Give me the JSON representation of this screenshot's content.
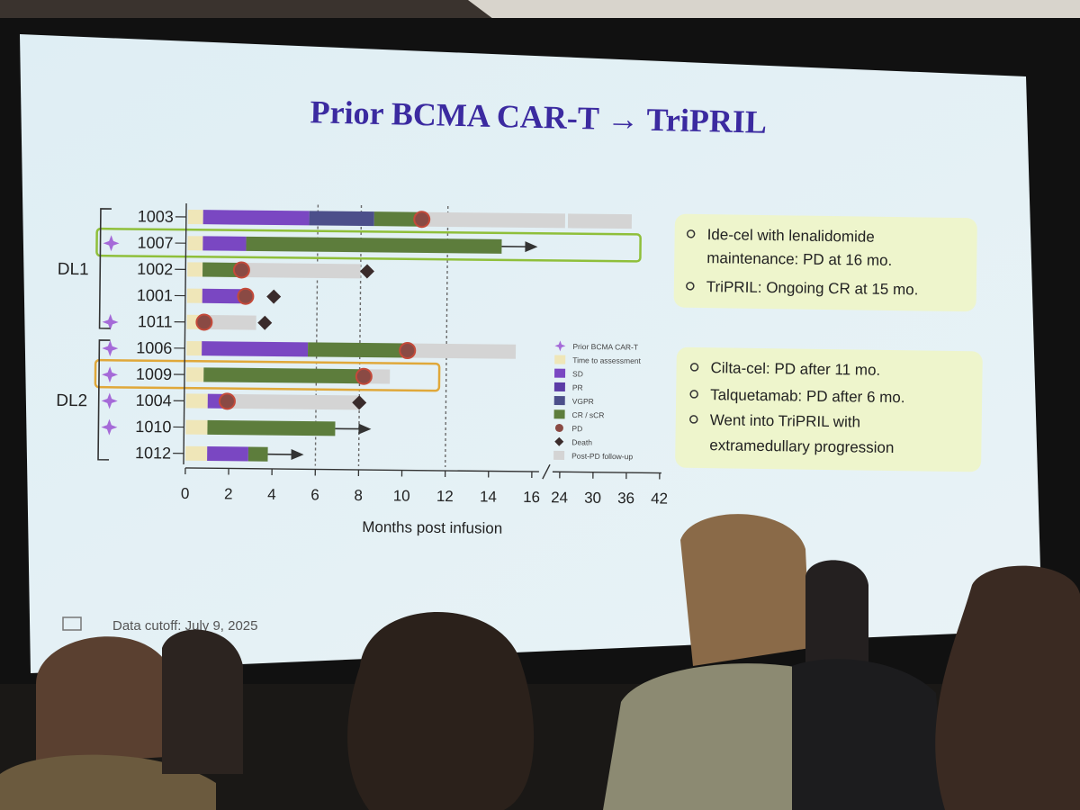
{
  "slide": {
    "title": "Prior BCMA CAR-T → TriPRIL",
    "footer": "Data cutoff: July 9, 2025"
  },
  "colors": {
    "screening": "#efe6b8",
    "sd": "#7a47c2",
    "pr": "#5b3ba6",
    "vgpr": "#4c4f8a",
    "cr": "#5d7d3c",
    "pd": "#8a4a44",
    "death": "#3a2b2b",
    "followup": "#d4d4d4",
    "prior": "#a56ad8",
    "title": "#3b2aa0",
    "dl1_box": "#8fbf3a",
    "dl2_box": "#e0a83a",
    "note_bg": "#eef5cc"
  },
  "notes": {
    "dl1": [
      {
        "line1": "Ide-cel with lenalidomide",
        "line2": "maintenance: PD at 16 mo."
      },
      {
        "line1": "TriPRIL: Ongoing CR at 15 mo.",
        "line2": ""
      }
    ],
    "dl2": [
      {
        "line1": "Cilta-cel: PD after 11 mo.",
        "line2": ""
      },
      {
        "line1": "Talquetamab: PD after 6 mo.",
        "line2": ""
      },
      {
        "line1": "Went into TriPRIL with",
        "line2": "extramedullary progression"
      }
    ]
  },
  "chart_data": {
    "type": "swimmer",
    "xlabel": "Months post infusion",
    "x_ticks": [
      "0",
      "2",
      "4",
      "6",
      "8",
      "10",
      "12",
      "14",
      "16",
      "24",
      "30",
      "36",
      "42"
    ],
    "x_scale": "piecewise linear: 0–16 then broken axis 24–42",
    "reference_lines_x": [
      6,
      8,
      12
    ],
    "groups": [
      {
        "label": "DL1",
        "patients": [
          "1003",
          "1007",
          "1002",
          "1001",
          "1011"
        ]
      },
      {
        "label": "DL2",
        "patients": [
          "1006",
          "1009",
          "1004",
          "1010",
          "1012"
        ]
      }
    ],
    "highlighted_patients": [
      {
        "id": "1007",
        "box": "dl1"
      },
      {
        "id": "1009",
        "box": "dl2"
      }
    ],
    "legend": [
      {
        "key": "prior",
        "label": "Prior BCMA CAR-T",
        "mark": "star"
      },
      {
        "key": "screening",
        "label": "Time to assessment",
        "mark": "rect"
      },
      {
        "key": "sd",
        "label": "SD",
        "mark": "rect"
      },
      {
        "key": "pr",
        "label": "PR",
        "mark": "rect"
      },
      {
        "key": "vgpr",
        "label": "VGPR",
        "mark": "rect"
      },
      {
        "key": "cr",
        "label": "CR / sCR",
        "mark": "rect"
      },
      {
        "key": "pd",
        "label": "PD",
        "mark": "circle"
      },
      {
        "key": "death",
        "label": "Death",
        "mark": "diamond"
      },
      {
        "key": "followup",
        "label": "Post-PD follow-up",
        "mark": "rect"
      }
    ],
    "patients": [
      {
        "id": "1003",
        "prior": false,
        "segments": [
          {
            "s": 0,
            "e": 0.7,
            "r": "screening"
          },
          {
            "s": 0.7,
            "e": 5.6,
            "r": "sd"
          },
          {
            "s": 5.6,
            "e": 8.6,
            "r": "vgpr"
          },
          {
            "s": 8.6,
            "e": 10.8,
            "r": "cr"
          },
          {
            "s": 10.8,
            "e": 24.5,
            "r": "followup"
          },
          {
            "s": 25,
            "e": 36.5,
            "r": "followup"
          }
        ],
        "pd": 10.8,
        "death": null,
        "ongoing": false
      },
      {
        "id": "1007",
        "prior": true,
        "segments": [
          {
            "s": 0,
            "e": 0.7,
            "r": "screening"
          },
          {
            "s": 0.7,
            "e": 2.7,
            "r": "sd"
          },
          {
            "s": 2.7,
            "e": 14.5,
            "r": "cr"
          }
        ],
        "pd": null,
        "death": null,
        "ongoing": true
      },
      {
        "id": "1002",
        "prior": false,
        "segments": [
          {
            "s": 0,
            "e": 0.7,
            "r": "screening"
          },
          {
            "s": 0.7,
            "e": 2.5,
            "r": "cr"
          },
          {
            "s": 2.5,
            "e": 8.0,
            "r": "followup"
          }
        ],
        "pd": 2.5,
        "death": 8.3,
        "ongoing": false
      },
      {
        "id": "1001",
        "prior": false,
        "segments": [
          {
            "s": 0,
            "e": 0.7,
            "r": "screening"
          },
          {
            "s": 0.7,
            "e": 2.7,
            "r": "sd"
          }
        ],
        "pd": 2.7,
        "death": 4.0,
        "ongoing": false
      },
      {
        "id": "1011",
        "prior": true,
        "segments": [
          {
            "s": 0,
            "e": 0.8,
            "r": "screening"
          },
          {
            "s": 0.8,
            "e": 3.2,
            "r": "followup"
          }
        ],
        "pd": 0.8,
        "death": 3.6,
        "ongoing": false
      },
      {
        "id": "1006",
        "prior": true,
        "segments": [
          {
            "s": 0,
            "e": 0.7,
            "r": "screening"
          },
          {
            "s": 0.7,
            "e": 5.6,
            "r": "sd"
          },
          {
            "s": 5.6,
            "e": 10.2,
            "r": "cr"
          },
          {
            "s": 10.2,
            "e": 15.2,
            "r": "followup"
          }
        ],
        "pd": 10.2,
        "death": null,
        "ongoing": false
      },
      {
        "id": "1009",
        "prior": true,
        "segments": [
          {
            "s": 0,
            "e": 0.8,
            "r": "screening"
          },
          {
            "s": 0.8,
            "e": 8.2,
            "r": "cr"
          },
          {
            "s": 8.2,
            "e": 9.4,
            "r": "followup"
          }
        ],
        "pd": 8.2,
        "death": null,
        "ongoing": false
      },
      {
        "id": "1004",
        "prior": true,
        "segments": [
          {
            "s": 0,
            "e": 1.0,
            "r": "screening"
          },
          {
            "s": 1.0,
            "e": 1.9,
            "r": "sd"
          },
          {
            "s": 1.9,
            "e": 8.0,
            "r": "followup"
          }
        ],
        "pd": 1.9,
        "death": 8.0,
        "ongoing": false
      },
      {
        "id": "1010",
        "prior": true,
        "segments": [
          {
            "s": 0,
            "e": 1.0,
            "r": "screening"
          },
          {
            "s": 1.0,
            "e": 6.9,
            "r": "cr"
          }
        ],
        "pd": null,
        "death": null,
        "ongoing": true
      },
      {
        "id": "1012",
        "prior": false,
        "segments": [
          {
            "s": 0,
            "e": 1.0,
            "r": "screening"
          },
          {
            "s": 1.0,
            "e": 2.9,
            "r": "sd"
          },
          {
            "s": 2.9,
            "e": 3.8,
            "r": "cr"
          }
        ],
        "pd": null,
        "death": null,
        "ongoing": true
      }
    ]
  }
}
